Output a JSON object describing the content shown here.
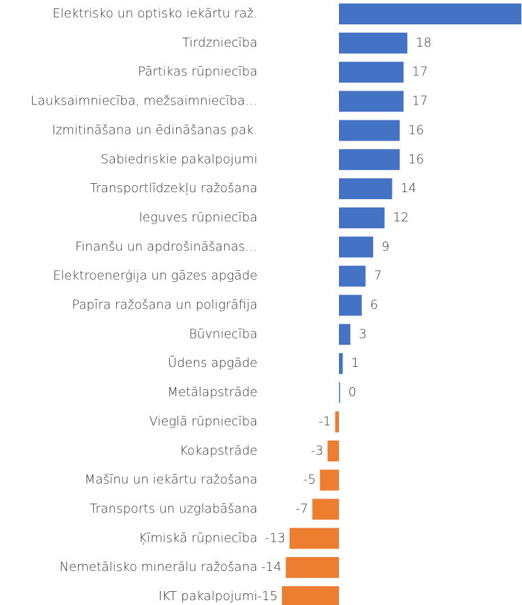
{
  "chart_data": {
    "type": "bar",
    "orientation": "horizontal",
    "categories": [
      "Elektrisko un optisko iekārtu raž.",
      "Tirdzniecība",
      "Pārtikas rūpniecība",
      "Lauksaimniecība, mežsaimniecība…",
      "Izmitināšana un ēdināšanas pak.",
      "Sabiedriskie pakalpojumi",
      "Transportlīdzekļu ražošana",
      "Ieguves rūpniecība",
      "Finanšu un apdrošināšanas…",
      "Elektroenerģija un gāzes apgāde",
      "Papīra ražošana un poligrāfija",
      "Būvniecība",
      "Ūdens apgāde",
      "Metālapstrāde",
      "Vieglā rūpniecība",
      "Kokapstrāde",
      "Mašīnu un iekārtu ražošana",
      "Transports un uzglabāšana",
      "Ķīmiskā rūpniecība",
      "Nemetālisko minerālu ražošana",
      "IKT pakalpojumi"
    ],
    "values": [
      48,
      18,
      17,
      17,
      16,
      16,
      14,
      12,
      9,
      7,
      6,
      3,
      1,
      0,
      -1,
      -3,
      -5,
      -7,
      -13,
      -14,
      -15
    ],
    "color": "#4472c4",
    "negative_color": "#ed7d31"
  }
}
